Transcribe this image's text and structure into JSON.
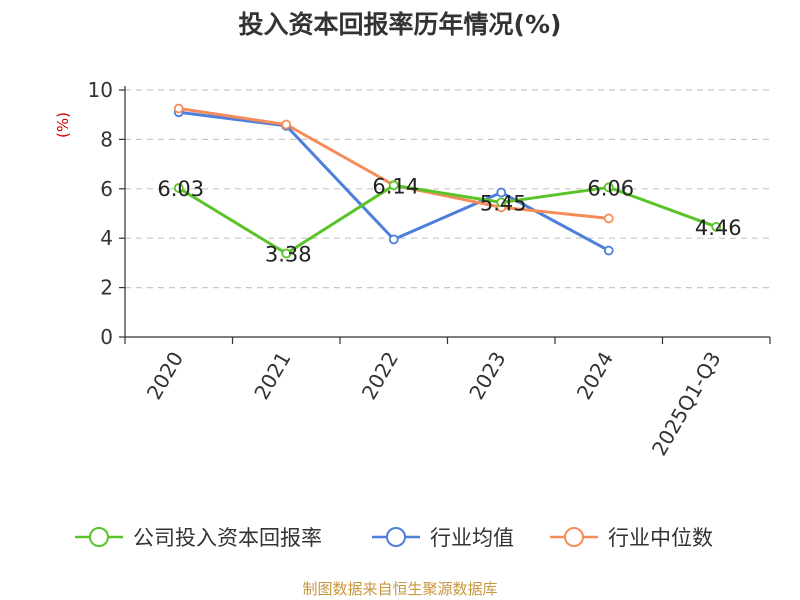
{
  "chart_data": {
    "type": "line",
    "title": "投入资本回报率历年情况(%)",
    "unit_label": "(%)",
    "categories": [
      "2020",
      "2021",
      "2022",
      "2023",
      "2024",
      "2025Q1-Q3"
    ],
    "ylim": [
      0,
      10
    ],
    "yticks": [
      "0",
      "2",
      "4",
      "6",
      "8",
      "10"
    ],
    "grid": true,
    "legend_position": "bottom",
    "series": [
      {
        "name": "公司投入资本回报率",
        "color": "#5ac328",
        "values": [
          6.03,
          3.38,
          6.14,
          5.45,
          6.06,
          4.46
        ],
        "labels": [
          "6.03",
          "3.38",
          "6.14",
          "5.45",
          "6.06",
          "4.46"
        ]
      },
      {
        "name": "行业均值",
        "color": "#4e7fdb",
        "values": [
          9.1,
          8.55,
          3.95,
          5.85,
          3.5,
          null
        ]
      },
      {
        "name": "行业中位数",
        "color": "#f58c5a",
        "values": [
          9.25,
          8.6,
          6.15,
          5.25,
          4.8,
          null
        ]
      }
    ]
  },
  "source": "制图数据来自恒生聚源数据库"
}
